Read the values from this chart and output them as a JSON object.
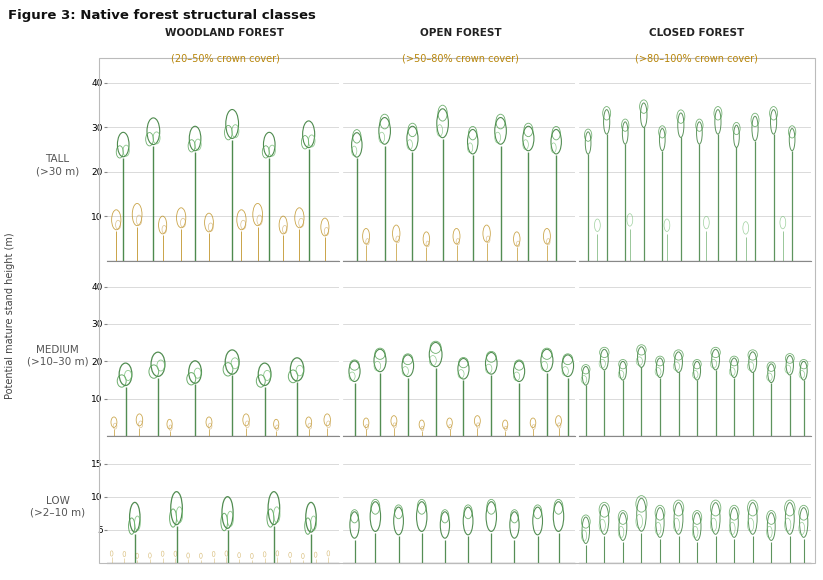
{
  "title": "Figure 3: Native forest structural classes",
  "col_headers": [
    "WOODLAND FOREST",
    "OPEN FOREST",
    "CLOSED FOREST"
  ],
  "col_subheaders": [
    "(20–50% crown cover)",
    "(>50–80% crown cover)",
    "(>80–100% crown cover)"
  ],
  "row_labels": [
    "TALL\n(>30 m)",
    "MEDIUM\n(>10–30 m)",
    "LOW\n(>2–10 m)"
  ],
  "ylabel": "Potential mature stand height (m)",
  "tall_yticks": [
    10,
    20,
    30,
    40
  ],
  "medium_yticks": [
    10,
    20,
    30,
    40
  ],
  "low_yticks": [
    5,
    10,
    15
  ],
  "tall_ylim": [
    0,
    43
  ],
  "medium_ylim": [
    0,
    43
  ],
  "low_ylim": [
    0,
    17
  ],
  "background": "#ffffff",
  "col_header_color": "#222222",
  "col_subheader_color": "#b8860b",
  "row_label_color": "#555555",
  "grid_color": "#cccccc",
  "green_dark": "#3a7d3a",
  "green_mid": "#4a9a4a",
  "green_light": "#6ab86a",
  "brown_color": "#b8860b",
  "brown_light": "#c8a050",
  "figure_width": 8.23,
  "figure_height": 5.8
}
